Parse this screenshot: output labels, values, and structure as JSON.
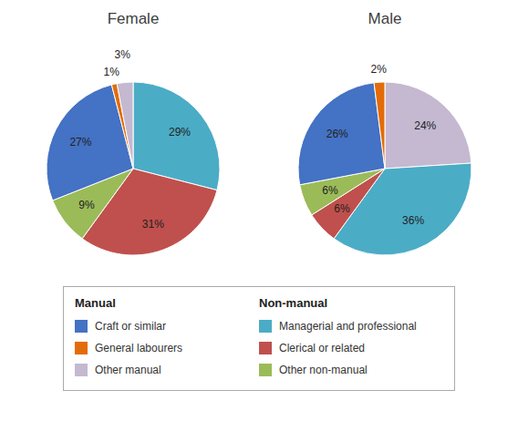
{
  "chart_data": [
    {
      "type": "pie",
      "title": "Female",
      "categories": [
        "Managerial and professional",
        "Clerical or related",
        "Other non-manual",
        "Craft or similar",
        "General labourers",
        "Other manual"
      ],
      "values": [
        29,
        31,
        9,
        27,
        1,
        3
      ],
      "value_labels": [
        "29%",
        "31%",
        "9%",
        "27%",
        "1%",
        "3%"
      ],
      "colors": [
        "#4BACC6",
        "#C0504D",
        "#9BBB59",
        "#4472C4",
        "#E36C09",
        "#C4B9D0"
      ],
      "data_labels": true
    },
    {
      "type": "pie",
      "title": "Male",
      "categories": [
        "Other manual",
        "Managerial and professional",
        "Clerical or related",
        "Other non-manual",
        "Craft or similar",
        "General labourers"
      ],
      "values": [
        24,
        36,
        6,
        6,
        26,
        2
      ],
      "value_labels": [
        "24%",
        "36%",
        "6%",
        "6%",
        "26%",
        "2%"
      ],
      "colors": [
        "#C4B9D0",
        "#4BACC6",
        "#C0504D",
        "#9BBB59",
        "#4472C4",
        "#E36C09"
      ],
      "data_labels": true
    }
  ],
  "legend_groups": [
    {
      "title": "Manual",
      "categories": [
        "Craft or similar",
        "General labourers",
        "Other manual"
      ],
      "colors": [
        "#4472C4",
        "#E36C09",
        "#C4B9D0"
      ]
    },
    {
      "title": "Non-manual",
      "categories": [
        "Managerial and professional",
        "Clerical or related",
        "Other non-manual"
      ],
      "colors": [
        "#4BACC6",
        "#C0504D",
        "#9BBB59"
      ]
    }
  ]
}
